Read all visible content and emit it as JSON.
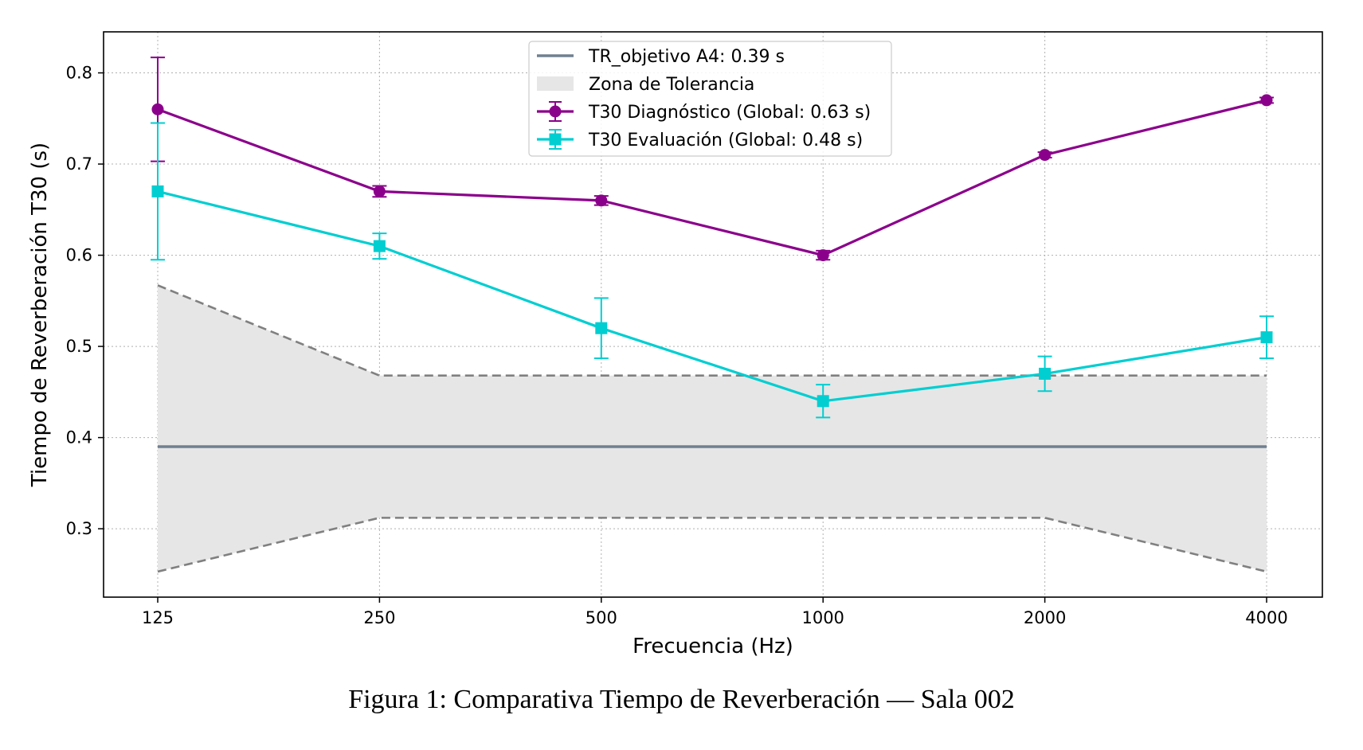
{
  "caption": "Figura 1: Comparativa Tiempo de Reverberación — Sala 002",
  "chart_data": {
    "type": "line",
    "xlabel": "Frecuencia (Hz)",
    "ylabel": "Tiempo de Reverberación T30 (s)",
    "categories": [
      "125",
      "250",
      "500",
      "1000",
      "2000",
      "4000"
    ],
    "ylim": [
      0.225,
      0.845
    ],
    "yticks": [
      "0.3",
      "0.4",
      "0.5",
      "0.6",
      "0.7",
      "0.8"
    ],
    "grid": true,
    "legend_position": "top-center",
    "target": {
      "name": "TR_objetivo A4: 0.39 s",
      "value": 0.39,
      "color": "#708090"
    },
    "tolerance": {
      "name": "Zona de Tolerancia",
      "upper": [
        0.567,
        0.468,
        0.468,
        0.468,
        0.468,
        0.468
      ],
      "lower": [
        0.253,
        0.312,
        0.312,
        0.312,
        0.312,
        0.253
      ]
    },
    "series": [
      {
        "name": "T30 Diagnóstico (Global: 0.63 s)",
        "color": "#8b008b",
        "marker": "circle",
        "values": [
          0.76,
          0.67,
          0.66,
          0.6,
          0.71,
          0.77
        ],
        "errors": [
          0.057,
          0.006,
          0.005,
          0.005,
          0.003,
          0.003
        ]
      },
      {
        "name": "T30 Evaluación (Global: 0.48 s)",
        "color": "#00ced1",
        "marker": "square",
        "values": [
          0.67,
          0.61,
          0.52,
          0.44,
          0.47,
          0.51
        ],
        "errors": [
          0.075,
          0.014,
          0.033,
          0.018,
          0.019,
          0.023
        ]
      }
    ]
  }
}
